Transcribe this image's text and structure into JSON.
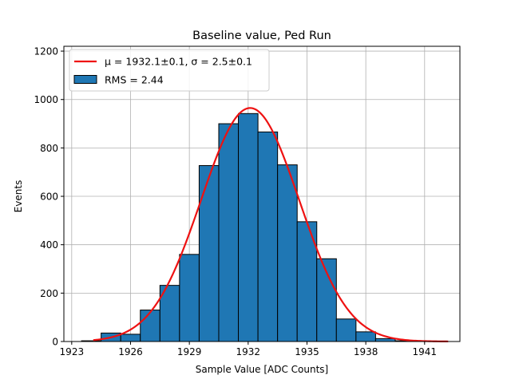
{
  "chart_data": {
    "type": "bar",
    "title": "Baseline value, Ped Run",
    "xlabel": "Sample Value [ADC Counts]",
    "ylabel": "Events",
    "xlim": [
      1922.6,
      1942.8
    ],
    "ylim": [
      0,
      1220
    ],
    "xticks": [
      1923,
      1926,
      1929,
      1932,
      1935,
      1938,
      1941
    ],
    "yticks": [
      0,
      200,
      400,
      600,
      800,
      1000,
      1200
    ],
    "grid": true,
    "legend_position": "top-left",
    "colors": {
      "bar": "#1f77b4",
      "fit": "#ee1111",
      "grid": "#b0b0b0"
    },
    "histogram": {
      "name": "RMS = 2.44",
      "bins": [
        {
          "x0": 1923.5,
          "x1": 1924.5,
          "count": 3
        },
        {
          "x0": 1924.5,
          "x1": 1925.5,
          "count": 35
        },
        {
          "x0": 1925.5,
          "x1": 1926.5,
          "count": 30
        },
        {
          "x0": 1926.5,
          "x1": 1927.5,
          "count": 130
        },
        {
          "x0": 1927.5,
          "x1": 1928.5,
          "count": 232
        },
        {
          "x0": 1928.5,
          "x1": 1929.5,
          "count": 360
        },
        {
          "x0": 1929.5,
          "x1": 1930.5,
          "count": 727
        },
        {
          "x0": 1930.5,
          "x1": 1931.5,
          "count": 900
        },
        {
          "x0": 1931.5,
          "x1": 1932.5,
          "count": 942
        },
        {
          "x0": 1932.5,
          "x1": 1933.5,
          "count": 866
        },
        {
          "x0": 1933.5,
          "x1": 1934.5,
          "count": 730
        },
        {
          "x0": 1934.5,
          "x1": 1935.5,
          "count": 495
        },
        {
          "x0": 1935.5,
          "x1": 1936.5,
          "count": 342
        },
        {
          "x0": 1936.5,
          "x1": 1937.5,
          "count": 93
        },
        {
          "x0": 1937.5,
          "x1": 1938.5,
          "count": 40
        },
        {
          "x0": 1938.5,
          "x1": 1939.5,
          "count": 12
        },
        {
          "x0": 1939.5,
          "x1": 1940.5,
          "count": 3
        }
      ]
    },
    "fit": {
      "name": "μ = 1932.1±0.1, σ = 2.5±0.1",
      "mu": 1932.1,
      "sigma": 2.5,
      "amplitude": 965,
      "x_range": [
        1924.1,
        1942.2
      ]
    }
  }
}
